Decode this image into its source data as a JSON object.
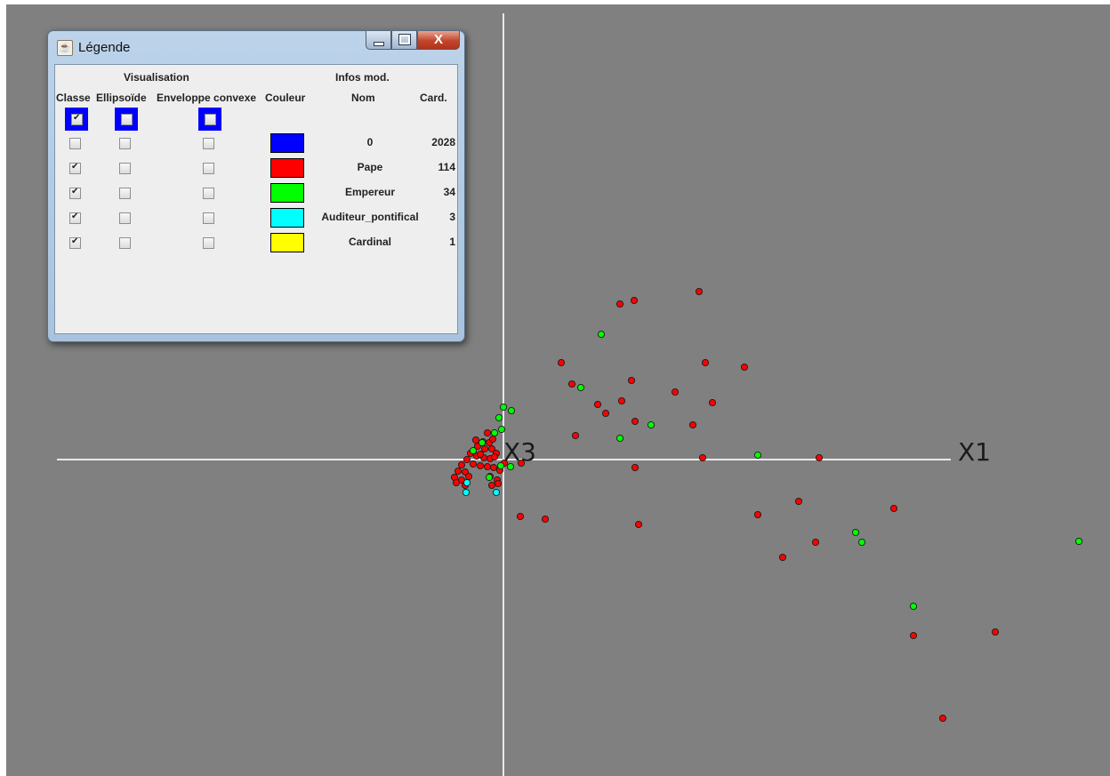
{
  "plot": {
    "background": "#808080",
    "axis_color": "#e6e6e6",
    "axis_labels": {
      "horizontal": "X1",
      "vertical_origin": "X3"
    }
  },
  "legend_window": {
    "title": "Légende",
    "controls": {
      "minimize": "minimize-icon",
      "maximize": "maximize-icon",
      "close": "X"
    },
    "group_headers": {
      "visualisation": "Visualisation",
      "infos": "Infos mod."
    },
    "column_headers": {
      "classe": "Classe",
      "ellipsoide": "Ellipsoïde",
      "enveloppe": "Enveloppe convexe",
      "couleur": "Couleur",
      "nom": "Nom",
      "card": "Card."
    },
    "master_toggles": {
      "classe": true,
      "ellipsoide": false,
      "enveloppe": false
    },
    "rows": [
      {
        "classe": false,
        "ellipsoide": false,
        "enveloppe": false,
        "color": "#0000ff",
        "nom": "0",
        "card": "2028"
      },
      {
        "classe": true,
        "ellipsoide": false,
        "enveloppe": false,
        "color": "#ff0000",
        "nom": "Pape",
        "card": "114"
      },
      {
        "classe": true,
        "ellipsoide": false,
        "enveloppe": false,
        "color": "#00ff00",
        "nom": "Empereur",
        "card": "34"
      },
      {
        "classe": true,
        "ellipsoide": false,
        "enveloppe": false,
        "color": "#00ffff",
        "nom": "Auditeur_pontifical",
        "card": "3"
      },
      {
        "classe": true,
        "ellipsoide": false,
        "enveloppe": false,
        "color": "#ffff00",
        "nom": "Cardinal",
        "card": "1"
      }
    ]
  }
}
